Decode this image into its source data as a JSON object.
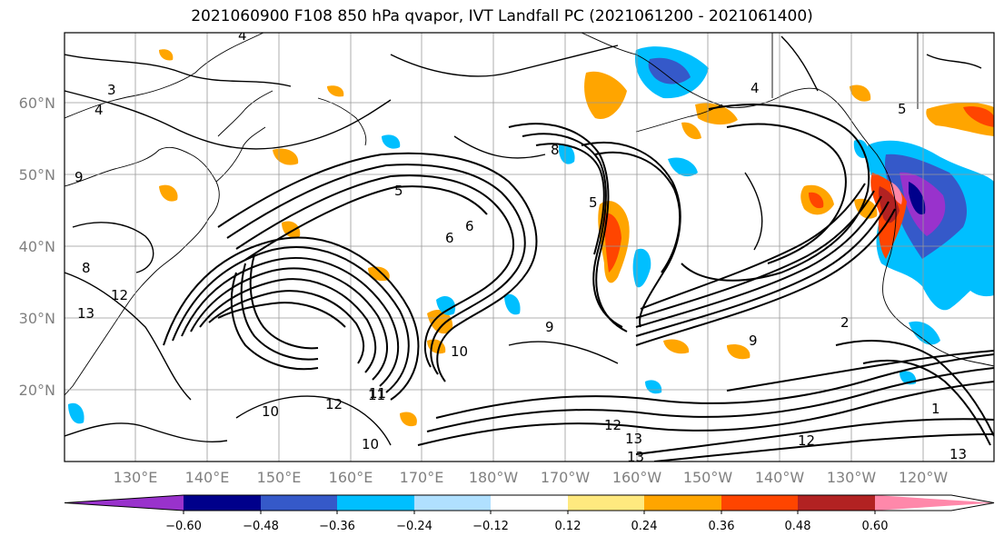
{
  "title": "2021060900 F108 850 hPa qvapor, IVT Landfall PC (2021061200 - 2021061400)",
  "map": {
    "lat_labels": [
      "60°N",
      "50°N",
      "40°N",
      "30°N",
      "20°N"
    ],
    "lon_labels": [
      "130°E",
      "140°E",
      "150°E",
      "160°E",
      "170°E",
      "180°W",
      "170°W",
      "160°W",
      "150°W",
      "140°W",
      "130°W",
      "120°W"
    ],
    "contour_labels": [
      "4",
      "3",
      "4",
      "5",
      "6",
      "8",
      "9",
      "12",
      "13",
      "10",
      "11",
      "12",
      "13",
      "13",
      "12",
      "10",
      "6",
      "5",
      "8",
      "9",
      "9",
      "4",
      "2",
      "5",
      "1",
      "13",
      "12",
      "11",
      "10"
    ]
  },
  "colorbar": {
    "ticks": [
      "−0.60",
      "−0.48",
      "−0.36",
      "−0.24",
      "−0.12",
      "0.12",
      "0.24",
      "0.36",
      "0.48",
      "0.60"
    ],
    "colors": [
      "#9932cc",
      "#00008b",
      "#3559c9",
      "#00bfff",
      "#b0e0ff",
      "#ffffff",
      "#ffe97f",
      "#ffa500",
      "#ff4500",
      "#b22222",
      "#ff88aa"
    ]
  }
}
